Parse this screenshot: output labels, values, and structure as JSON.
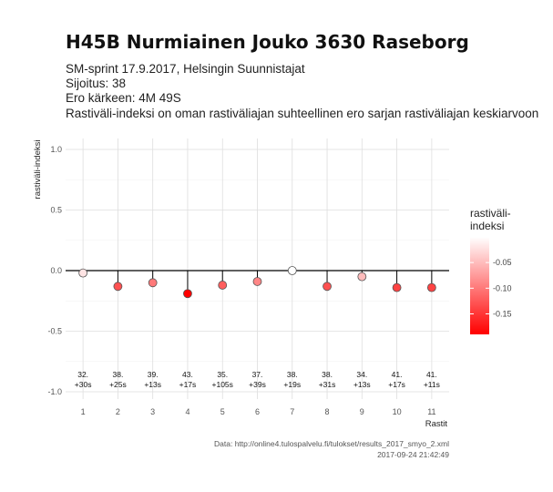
{
  "chart_data": {
    "type": "scatter",
    "title": "H45B Nurmiainen Jouko 3630 Raseborg",
    "subtitle_lines": [
      "SM-sprint 17.9.2017, Helsingin Suunnistajat",
      "Sijoitus: 38",
      "Ero kärkeen: 4M 49S",
      "Rastiväli-indeksi on oman rastiväliajan suhteellinen ero sarjan rastiväliajan keskiarvoon"
    ],
    "xlabel": "Rastit",
    "ylabel": "rastiväli-indeksi",
    "ylim": [
      -1.0,
      1.0
    ],
    "yticks": [
      1.0,
      0.5,
      0.0,
      -0.5,
      -1.0
    ],
    "ytick_labels": [
      "1.0",
      "0.5",
      "0.0",
      "-0.5",
      "-1.0"
    ],
    "xlim": [
      0.5,
      11.5
    ],
    "x": [
      1,
      2,
      3,
      4,
      5,
      6,
      7,
      8,
      9,
      10,
      11
    ],
    "values": [
      -0.02,
      -0.13,
      -0.1,
      -0.19,
      -0.12,
      -0.09,
      0.0,
      -0.13,
      -0.05,
      -0.14,
      -0.14
    ],
    "annotations": [
      [
        "32.",
        "+30s"
      ],
      [
        "38.",
        "+25s"
      ],
      [
        "39.",
        "+13s"
      ],
      [
        "43.",
        "+17s"
      ],
      [
        "35.",
        "+105s"
      ],
      [
        "37.",
        "+39s"
      ],
      [
        "38.",
        "+19s"
      ],
      [
        "38.",
        "+31s"
      ],
      [
        "34.",
        "+13s"
      ],
      [
        "41.",
        "+17s"
      ],
      [
        "41.",
        "+11s"
      ]
    ],
    "grid": true,
    "legend": {
      "title_lines": [
        "rastiväli-",
        "indeksi"
      ],
      "ticks": [
        -0.05,
        -0.1,
        -0.15
      ],
      "tick_labels": [
        "-0.05",
        "-0.10",
        "-0.15"
      ],
      "range": [
        -0.19,
        0.0
      ],
      "placement": "right",
      "colors": {
        "low": "#ff0000",
        "high": "#ffffff"
      }
    },
    "caption_lines": [
      "Data: http://online4.tulospalvelu.fi/tulokset/results_2017_smyo_2.xml",
      "2017-09-24 21:42:49"
    ]
  }
}
